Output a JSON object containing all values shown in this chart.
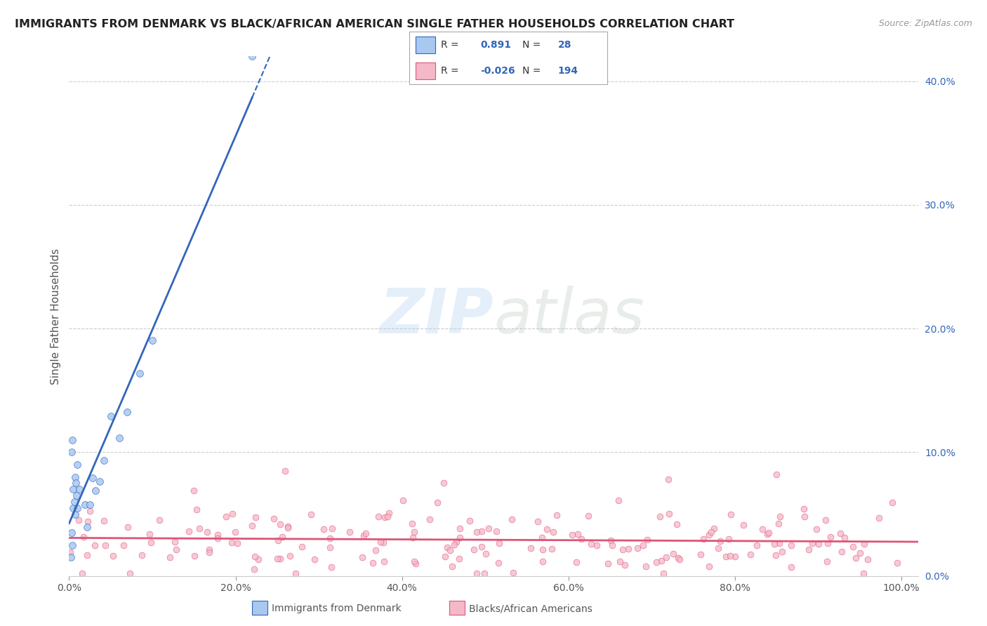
{
  "title": "IMMIGRANTS FROM DENMARK VS BLACK/AFRICAN AMERICAN SINGLE FATHER HOUSEHOLDS CORRELATION CHART",
  "source": "Source: ZipAtlas.com",
  "ylabel": "Single Father Households",
  "watermark_zip": "ZIP",
  "watermark_atlas": "atlas",
  "legend_blue_r": "0.891",
  "legend_blue_n": "28",
  "legend_pink_r": "-0.026",
  "legend_pink_n": "194",
  "legend_blue_label": "Immigrants from Denmark",
  "legend_pink_label": "Blacks/African Americans",
  "blue_color": "#a8c8f0",
  "blue_line_color": "#3366bb",
  "pink_color": "#f5b8c8",
  "pink_line_color": "#dd5577",
  "r_text_color": "#3366bb",
  "ylim": [
    0.0,
    0.42
  ],
  "xlim": [
    0.0,
    1.02
  ],
  "yticks": [
    0.0,
    0.1,
    0.2,
    0.3,
    0.4
  ],
  "ytick_labels": [
    "0.0%",
    "10.0%",
    "20.0%",
    "30.0%",
    "40.0%"
  ],
  "xticks": [
    0.0,
    0.2,
    0.4,
    0.6,
    0.8,
    1.0
  ],
  "xtick_labels": [
    "0.0%",
    "20.0%",
    "40.0%",
    "60.0%",
    "80.0%",
    "100.0%"
  ],
  "grid_color": "#cccccc",
  "title_color": "#222222",
  "tick_color": "#555555",
  "background": "#ffffff"
}
